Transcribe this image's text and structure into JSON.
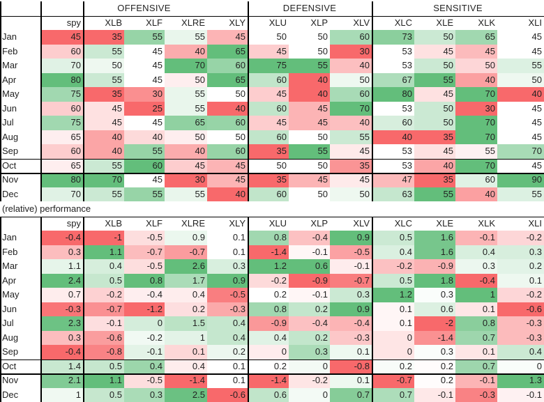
{
  "groups": [
    "OFFENSIVE",
    "DEFENSIVE",
    "SENSITIVE"
  ],
  "columns": [
    "spy",
    "XLB",
    "XLF",
    "XLRE",
    "XLY",
    "XLU",
    "XLP",
    "XLV",
    "XLC",
    "XLE",
    "XLK",
    "XLI"
  ],
  "section_label": "(relative) performance",
  "colors": {
    "green_max": "#63be7b",
    "neutral": "#ffffff",
    "red_max": "#f8696b"
  },
  "seasonality": {
    "rows": [
      {
        "month": "Jan",
        "values": [
          45,
          35,
          55,
          55,
          45,
          50,
          50,
          60,
          73,
          50,
          65,
          45
        ]
      },
      {
        "month": "Feb",
        "values": [
          60,
          55,
          45,
          40,
          65,
          45,
          50,
          30,
          53,
          45,
          45,
          45
        ]
      },
      {
        "month": "Mar",
        "values": [
          70,
          50,
          45,
          70,
          60,
          75,
          55,
          40,
          53,
          50,
          50,
          55
        ]
      },
      {
        "month": "Apr",
        "values": [
          80,
          55,
          45,
          50,
          65,
          60,
          40,
          50,
          67,
          55,
          40,
          50
        ]
      },
      {
        "month": "May",
        "values": [
          75,
          35,
          30,
          55,
          50,
          45,
          40,
          60,
          80,
          45,
          70,
          40
        ]
      },
      {
        "month": "Jun",
        "values": [
          60,
          45,
          25,
          55,
          40,
          60,
          45,
          70,
          53,
          50,
          30,
          45
        ]
      },
      {
        "month": "Jul",
        "values": [
          75,
          45,
          45,
          65,
          60,
          45,
          45,
          40,
          60,
          50,
          70,
          45
        ]
      },
      {
        "month": "Aug",
        "values": [
          65,
          40,
          40,
          50,
          50,
          60,
          50,
          55,
          40,
          35,
          70,
          45
        ]
      },
      {
        "month": "Sep",
        "values": [
          60,
          40,
          55,
          40,
          60,
          35,
          55,
          45,
          53,
          45,
          55,
          70
        ]
      },
      {
        "month": "Oct",
        "values": [
          65,
          55,
          60,
          45,
          45,
          50,
          50,
          35,
          53,
          40,
          70,
          45
        ]
      },
      {
        "month": "Nov",
        "values": [
          80,
          70,
          45,
          30,
          45,
          35,
          45,
          45,
          47,
          35,
          60,
          90
        ]
      },
      {
        "month": "Dec",
        "values": [
          70,
          55,
          55,
          55,
          40,
          60,
          50,
          50,
          63,
          55,
          40,
          55
        ]
      }
    ]
  },
  "performance": {
    "rows": [
      {
        "month": "Jan",
        "values": [
          -0.4,
          -1,
          -0.5,
          0.9,
          0.1,
          0.8,
          -0.4,
          0.9,
          0.5,
          1.6,
          -0.1,
          -0.2
        ]
      },
      {
        "month": "Feb",
        "values": [
          0.3,
          1.1,
          -0.7,
          -0.7,
          0.1,
          -1.4,
          -0.1,
          -0.5,
          0.4,
          1.6,
          0.4,
          0.3
        ]
      },
      {
        "month": "Mar",
        "values": [
          1.1,
          0.4,
          -0.5,
          2.6,
          0.3,
          1.2,
          0.6,
          -0.1,
          -0.2,
          -0.9,
          0.3,
          0.2
        ]
      },
      {
        "month": "Apr",
        "values": [
          2.4,
          0.5,
          0.8,
          1.7,
          0.9,
          -0.2,
          -0.9,
          -0.7,
          0.5,
          1.8,
          -0.4,
          0.1
        ]
      },
      {
        "month": "May",
        "values": [
          0.7,
          -0.2,
          -0.4,
          0.4,
          -0.5,
          0.2,
          -0.1,
          0.3,
          1.2,
          0.3,
          1,
          -0.2
        ]
      },
      {
        "month": "Jun",
        "values": [
          -0.3,
          -0.7,
          -1.2,
          0.2,
          -0.3,
          0.8,
          0.2,
          0.9,
          0.1,
          0.6,
          0.1,
          -0.6
        ]
      },
      {
        "month": "Jul",
        "values": [
          2.3,
          -0.1,
          0,
          1.5,
          0.4,
          -0.9,
          -0.4,
          -0.4,
          0.1,
          -2,
          0.8,
          -0.3
        ]
      },
      {
        "month": "Aug",
        "values": [
          0.3,
          -0.6,
          -0.2,
          1,
          0.4,
          0.4,
          0.2,
          -0.3,
          0,
          -1.4,
          0.7,
          -0.3
        ]
      },
      {
        "month": "Sep",
        "values": [
          -0.4,
          -0.8,
          -0.1,
          0.1,
          0.2,
          0,
          0.3,
          0.1,
          0,
          0.3,
          0.1,
          0.4
        ]
      },
      {
        "month": "Oct",
        "values": [
          1.4,
          0.5,
          0.4,
          0.4,
          0.1,
          0.2,
          0,
          -0.8,
          0.2,
          0.2,
          0.7,
          0
        ]
      },
      {
        "month": "Nov",
        "values": [
          2.1,
          1.1,
          -0.5,
          -1.4,
          0.1,
          -1.4,
          -0.2,
          0.1,
          -0.7,
          0.2,
          -0.1,
          1.3
        ]
      },
      {
        "month": "Dec",
        "values": [
          1,
          0.5,
          0.3,
          2.5,
          -0.6,
          0.6,
          0,
          0.7,
          0.7,
          -0.1,
          -0.3,
          -0.1
        ]
      }
    ]
  }
}
